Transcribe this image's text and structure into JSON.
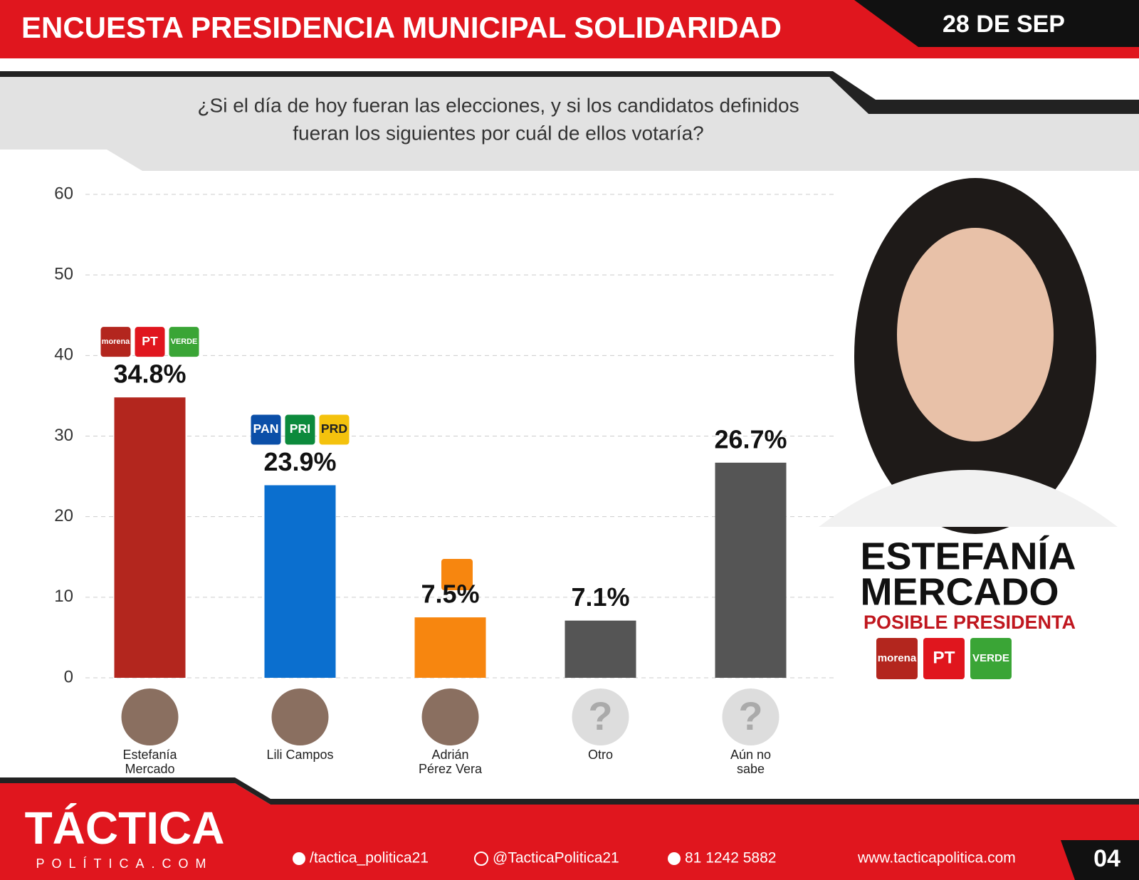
{
  "header": {
    "title": "ENCUESTA PRESIDENCIA MUNICIPAL SOLIDARIDAD",
    "date": "28 DE SEP",
    "question": [
      "¿Si el día de hoy fueran las elecciones, y si los candidatos definidos",
      "fueran los siguientes por cuál de ellos votaría?"
    ]
  },
  "chart_data": {
    "type": "bar",
    "categories": [
      "Estefanía Mercado",
      "Lili Campos",
      "Adrián Pérez Vera",
      "Otro",
      "Aún no sabe"
    ],
    "values": [
      34.8,
      23.9,
      7.5,
      7.1,
      26.7
    ],
    "value_labels": [
      "34.8%",
      "23.9%",
      "7.5%",
      "7.1%",
      "26.7%"
    ],
    "colors": [
      "#b3261e",
      "#0b6fcf",
      "#f7860f",
      "#555555",
      "#555555"
    ],
    "party_logos": [
      [
        "morena",
        "PT",
        "VERDE"
      ],
      [
        "PAN",
        "PRI",
        "PRD"
      ],
      [],
      [],
      []
    ],
    "ylim": [
      0,
      60
    ],
    "yticks": [
      0,
      10,
      20,
      30,
      40,
      50,
      60
    ],
    "grid": true
  },
  "icons": {
    "unknown": "?"
  },
  "sidebar": {
    "name": [
      "ESTEFANÍA",
      "MERCADO"
    ],
    "role": "POSIBLE PRESIDENTA",
    "parties": [
      "morena",
      "PT",
      "VERDE"
    ]
  },
  "footer": {
    "brand": "TÁCTICA",
    "brand_sub": "POLÍTICA.COM",
    "facebook": "/tactica_politica21",
    "instagram": "@TacticaPolitica21",
    "phone": "81 1242 5882",
    "web": "www.tacticapolitica.com",
    "page": "04"
  }
}
